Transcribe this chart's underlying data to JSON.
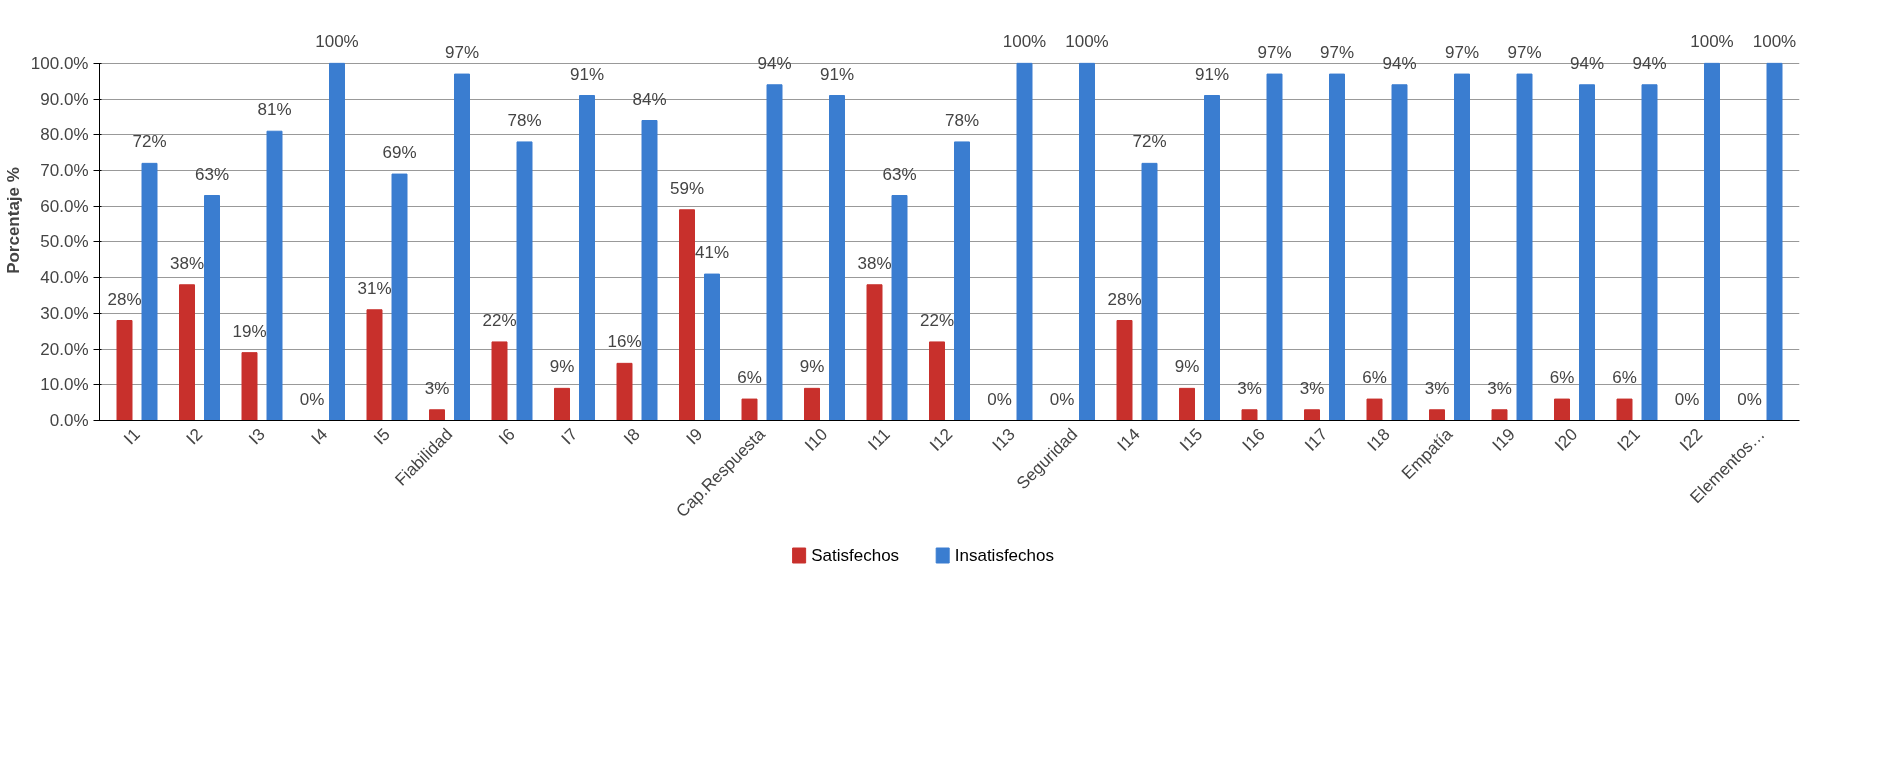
{
  "chart_data": {
    "type": "bar",
    "ylabel": "Porcentaje %",
    "categories": [
      "I1",
      "I2",
      "I3",
      "I4",
      "I5",
      "Fiabilidad",
      "I6",
      "I7",
      "I8",
      "I9",
      "Cap.Respuesta",
      "I10",
      "I11",
      "I12",
      "I13",
      "Seguridad",
      "I14",
      "I15",
      "I16",
      "I17",
      "I18",
      "Empatía",
      "I19",
      "I20",
      "I21",
      "I22",
      "Elementos…"
    ],
    "series": [
      {
        "name": "Satisfechos",
        "color": "#c8302c",
        "values": [
          28,
          38,
          19,
          0,
          31,
          3,
          22,
          9,
          16,
          59,
          6,
          9,
          38,
          22,
          0,
          0,
          28,
          9,
          3,
          3,
          6,
          3,
          3,
          6,
          6,
          0,
          0
        ],
        "value_labels": [
          "28%",
          "38%",
          "19%",
          "0%",
          "31%",
          "3%",
          "22%",
          "9%",
          "16%",
          "59%",
          "6%",
          "9%",
          "38%",
          "22%",
          "0%",
          "0%",
          "28%",
          "9%",
          "3%",
          "3%",
          "6%",
          "3%",
          "3%",
          "6%",
          "6%",
          "0%",
          "0%"
        ]
      },
      {
        "name": "Insatisfechos",
        "color": "#3a7dd0",
        "values": [
          72,
          63,
          81,
          100,
          69,
          97,
          78,
          91,
          84,
          41,
          94,
          91,
          63,
          78,
          100,
          100,
          72,
          91,
          97,
          97,
          94,
          97,
          97,
          94,
          94,
          100,
          100
        ],
        "value_labels": [
          "72%",
          "63%",
          "81%",
          "100%",
          "69%",
          "97%",
          "78%",
          "91%",
          "84%",
          "41%",
          "94%",
          "91%",
          "63%",
          "78%",
          "100%",
          "100%",
          "72%",
          "91%",
          "97%",
          "97%",
          "94%",
          "97%",
          "97%",
          "94%",
          "94%",
          "100%",
          "100%"
        ]
      }
    ],
    "ylim": [
      0,
      100
    ],
    "yticks": [
      {
        "value": 0,
        "label": "0.0%"
      },
      {
        "value": 10,
        "label": "10.0%"
      },
      {
        "value": 20,
        "label": "20.0%"
      },
      {
        "value": 30,
        "label": "30.0%"
      },
      {
        "value": 40,
        "label": "40.0%"
      },
      {
        "value": 50,
        "label": "50.0%"
      },
      {
        "value": 60,
        "label": "60.0%"
      },
      {
        "value": 70,
        "label": "70.0%"
      },
      {
        "value": 80,
        "label": "80.0%"
      },
      {
        "value": 90,
        "label": "90.0%"
      },
      {
        "value": 100,
        "label": "100.0%"
      }
    ],
    "grid": "y",
    "legend": "bottom"
  }
}
